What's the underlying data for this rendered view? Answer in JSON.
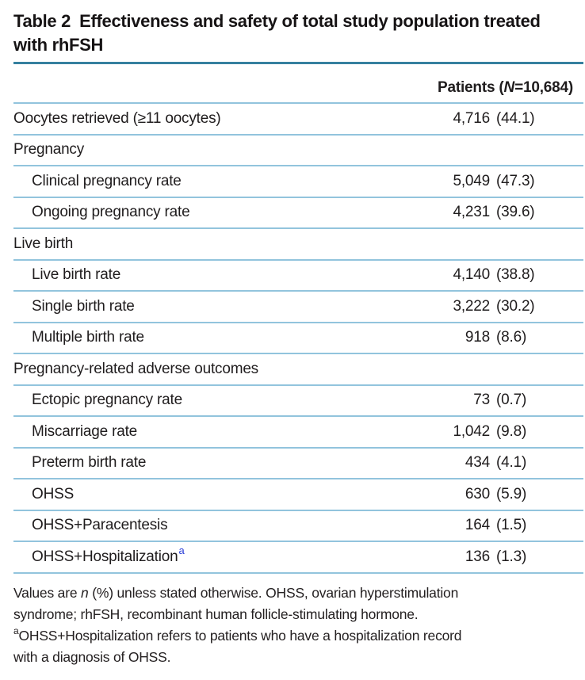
{
  "title": {
    "label": "Table 2",
    "text": "Effectiveness and safety of total study population treated with rhFSH"
  },
  "header": {
    "patients_col": {
      "prefix": "Patients (",
      "n_symbol": "N",
      "suffix": "=10,684)"
    }
  },
  "table": {
    "value_format": "n (%)",
    "rows": [
      {
        "label": "Oocytes retrieved (≥11 oocytes)",
        "n": "4,716",
        "pct": "(44.1)",
        "indent": false,
        "section": false
      },
      {
        "label": "Pregnancy",
        "section": true
      },
      {
        "label": "Clinical pregnancy rate",
        "n": "5,049",
        "pct": "(47.3)",
        "indent": true,
        "section": false
      },
      {
        "label": "Ongoing pregnancy rate",
        "n": "4,231",
        "pct": "(39.6)",
        "indent": true,
        "section": false
      },
      {
        "label": "Live birth",
        "section": true
      },
      {
        "label": "Live birth rate",
        "n": "4,140",
        "pct": "(38.8)",
        "indent": true,
        "section": false
      },
      {
        "label": "Single birth rate",
        "n": "3,222",
        "pct": "(30.2)",
        "indent": true,
        "section": false
      },
      {
        "label": "Multiple birth rate",
        "n": "918",
        "pct": "(8.6)",
        "indent": true,
        "section": false
      },
      {
        "label": "Pregnancy-related adverse outcomes",
        "section": true
      },
      {
        "label": "Ectopic pregnancy rate",
        "n": "73",
        "pct": "(0.7)",
        "indent": true,
        "section": false
      },
      {
        "label": "Miscarriage rate",
        "n": "1,042",
        "pct": "(9.8)",
        "indent": true,
        "section": false
      },
      {
        "label": "Preterm birth rate",
        "n": "434",
        "pct": "(4.1)",
        "indent": true,
        "section": false
      },
      {
        "label": "OHSS",
        "n": "630",
        "pct": "(5.9)",
        "indent": true,
        "section": false
      },
      {
        "label": "OHSS+Paracentesis",
        "n": "164",
        "pct": "(1.5)",
        "indent": true,
        "section": false
      },
      {
        "label": "OHSS+Hospitalization",
        "sup": "a",
        "n": "136",
        "pct": "(1.3)",
        "indent": true,
        "section": false
      }
    ]
  },
  "footnote": {
    "l1a": "Values are ",
    "l1b": "n",
    "l1c": " (%) unless stated otherwise. OHSS, ovarian hyperstimulation",
    "l2": "syndrome; rhFSH, recombinant human follicle-stimulating hormone.",
    "l3sup": "a",
    "l3": "OHSS+Hospitalization refers to patients who have a hospitalization record",
    "l4": "with a diagnosis of OHSS."
  },
  "colors": {
    "rule_dark_teal": "#36809f",
    "rule_light_blue": "#92c4dd",
    "footnote_link_blue": "#2b3ed6",
    "text": "#1f1c1d"
  }
}
